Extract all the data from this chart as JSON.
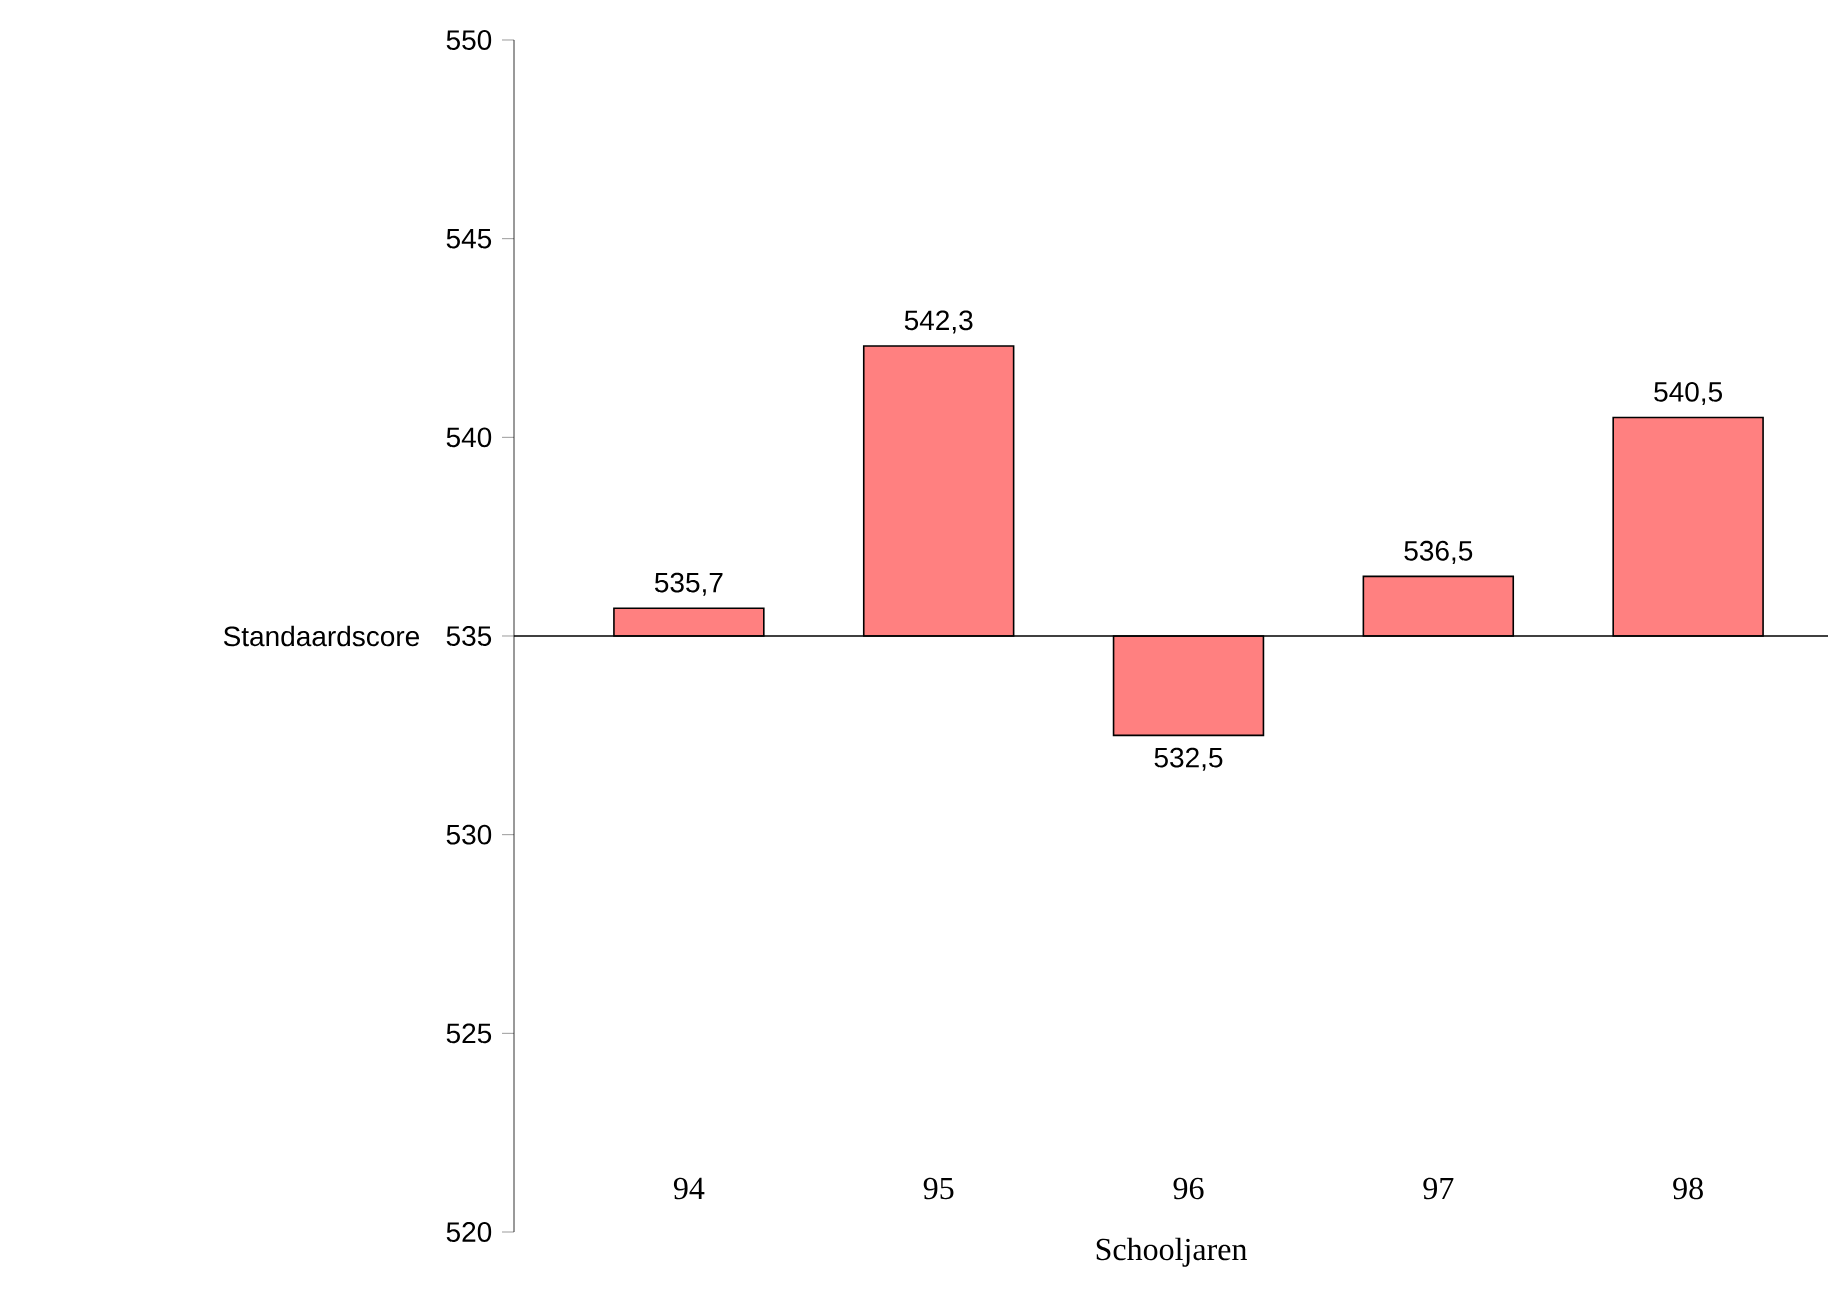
{
  "chart_data": {
    "type": "bar",
    "categories": [
      "94",
      "95",
      "96",
      "97",
      "98"
    ],
    "values": [
      0.7,
      7.3,
      -2.5,
      1.5,
      5.5
    ],
    "base": [
      535,
      535,
      535,
      535,
      535
    ],
    "value_labels": [
      "535,7",
      "542,3",
      "532,5",
      "536,5",
      "540,5"
    ],
    "color": "#ff8080",
    "xlabel": "Schooljaren",
    "ylabel": "Standaardscore",
    "ylim": [
      520,
      550
    ],
    "yticks": [
      520,
      525,
      530,
      535,
      540,
      545,
      550
    ],
    "ref_lines": [
      {
        "axis": "y",
        "value": 535
      }
    ],
    "grid": false
  }
}
